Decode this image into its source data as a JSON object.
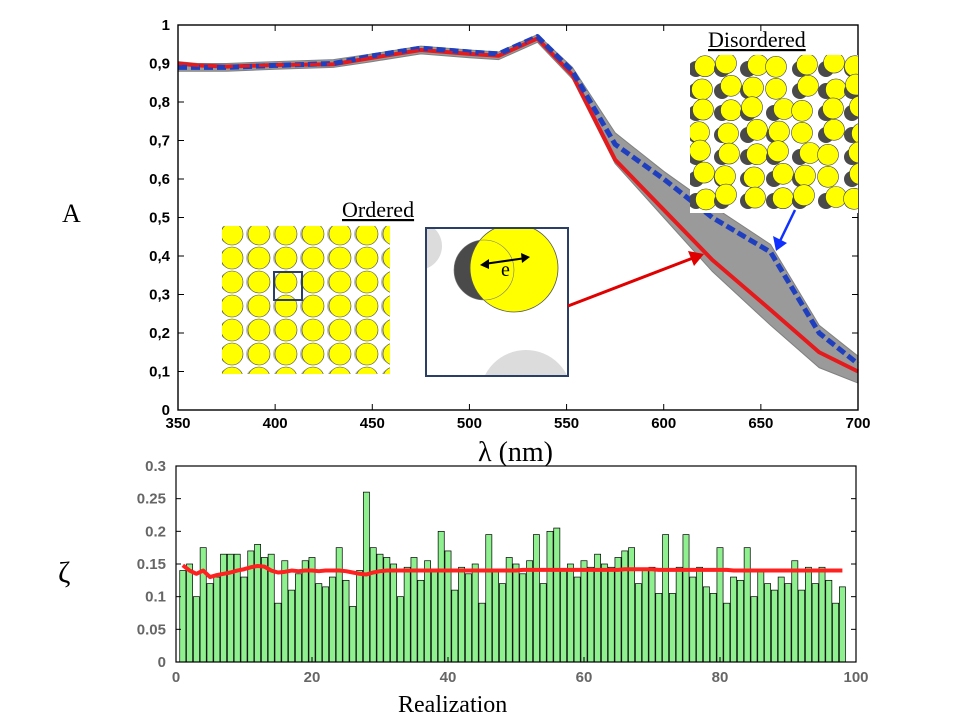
{
  "chart_data": [
    {
      "type": "line",
      "ylabel": "A",
      "xlabel": "λ (nm)",
      "xlim": [
        350,
        700
      ],
      "ylim": [
        0,
        1
      ],
      "xticks": [
        "350",
        "400",
        "450",
        "500",
        "550",
        "600",
        "650",
        "700"
      ],
      "yticks": [
        "0",
        "0,1",
        "0,2",
        "0,3",
        "0,4",
        "0,5",
        "0,6",
        "0,7",
        "0,8",
        "0,9",
        "1"
      ],
      "x": [
        350,
        360,
        375,
        400,
        430,
        450,
        475,
        500,
        515,
        535,
        553,
        575,
        600,
        625,
        655,
        680,
        700
      ],
      "series": [
        {
          "name": "Ordered",
          "color": "#e41a1c",
          "style": "solid",
          "values": [
            0.9,
            0.895,
            0.892,
            0.896,
            0.898,
            0.915,
            0.935,
            0.925,
            0.92,
            0.965,
            0.87,
            0.65,
            0.52,
            0.39,
            0.26,
            0.15,
            0.1
          ]
        },
        {
          "name": "Disordered",
          "color": "#1f3fbf",
          "style": "dashed",
          "values": [
            0.89,
            0.89,
            0.89,
            0.895,
            0.9,
            0.92,
            0.94,
            0.93,
            0.925,
            0.97,
            0.88,
            0.69,
            0.6,
            0.5,
            0.41,
            0.2,
            0.12
          ]
        }
      ],
      "band": {
        "color": "#9a9a9a",
        "lower": [
          0.88,
          0.88,
          0.88,
          0.885,
          0.89,
          0.905,
          0.925,
          0.915,
          0.91,
          0.955,
          0.86,
          0.64,
          0.5,
          0.36,
          0.22,
          0.11,
          0.07
        ],
        "upper": [
          0.905,
          0.9,
          0.9,
          0.905,
          0.91,
          0.925,
          0.945,
          0.935,
          0.93,
          0.975,
          0.89,
          0.72,
          0.62,
          0.53,
          0.43,
          0.22,
          0.14
        ]
      },
      "annotations": {
        "ordered": "Ordered",
        "disordered": "Disordered",
        "e_label": "e"
      }
    },
    {
      "type": "bar",
      "ylabel": "ζ",
      "xlabel": "Realization",
      "xlim": [
        0,
        100
      ],
      "ylim": [
        0,
        0.3
      ],
      "xticks": [
        "0",
        "20",
        "40",
        "60",
        "80",
        "100"
      ],
      "yticks": [
        "0",
        "0.05",
        "0.1",
        "0.15",
        "0.2",
        "0.25",
        "0.3"
      ],
      "bar_color": "#8ef08e",
      "mean_line_color": "#ff2020",
      "values": [
        0.14,
        0.15,
        0.1,
        0.175,
        0.12,
        0.13,
        0.165,
        0.165,
        0.165,
        0.13,
        0.17,
        0.18,
        0.16,
        0.165,
        0.09,
        0.155,
        0.11,
        0.135,
        0.155,
        0.16,
        0.12,
        0.115,
        0.13,
        0.175,
        0.125,
        0.085,
        0.14,
        0.26,
        0.175,
        0.165,
        0.16,
        0.15,
        0.1,
        0.145,
        0.16,
        0.125,
        0.155,
        0.14,
        0.2,
        0.17,
        0.11,
        0.145,
        0.135,
        0.15,
        0.09,
        0.195,
        0.14,
        0.12,
        0.16,
        0.15,
        0.135,
        0.155,
        0.195,
        0.12,
        0.2,
        0.205,
        0.14,
        0.15,
        0.13,
        0.155,
        0.145,
        0.165,
        0.15,
        0.145,
        0.16,
        0.17,
        0.175,
        0.12,
        0.14,
        0.145,
        0.105,
        0.195,
        0.105,
        0.145,
        0.195,
        0.13,
        0.145,
        0.115,
        0.105,
        0.175,
        0.09,
        0.13,
        0.125,
        0.175,
        0.1,
        0.14,
        0.12,
        0.11,
        0.13,
        0.12,
        0.155,
        0.11,
        0.145,
        0.12,
        0.145,
        0.125,
        0.09,
        0.115
      ],
      "mean_line": [
        0.148,
        0.14,
        0.135,
        0.14,
        0.13,
        0.133,
        0.135,
        0.137,
        0.14,
        0.142,
        0.145,
        0.147,
        0.146,
        0.14,
        0.137,
        0.138,
        0.14,
        0.139,
        0.14,
        0.14,
        0.139,
        0.14,
        0.14,
        0.14,
        0.139,
        0.137,
        0.135,
        0.134,
        0.137,
        0.139,
        0.14,
        0.14,
        0.14,
        0.14,
        0.14,
        0.14,
        0.14,
        0.14,
        0.14,
        0.14,
        0.14,
        0.14,
        0.14,
        0.14,
        0.14,
        0.14,
        0.14,
        0.14,
        0.14,
        0.14,
        0.141,
        0.141,
        0.141,
        0.141,
        0.141,
        0.141,
        0.141,
        0.141,
        0.141,
        0.141,
        0.141,
        0.141,
        0.141,
        0.141,
        0.141,
        0.142,
        0.142,
        0.142,
        0.142,
        0.142,
        0.141,
        0.141,
        0.141,
        0.141,
        0.141,
        0.141,
        0.141,
        0.141,
        0.141,
        0.141,
        0.141,
        0.14,
        0.14,
        0.14,
        0.14,
        0.14,
        0.14,
        0.14,
        0.14,
        0.14,
        0.14,
        0.14,
        0.14,
        0.14,
        0.14,
        0.14,
        0.14,
        0.14
      ]
    }
  ]
}
